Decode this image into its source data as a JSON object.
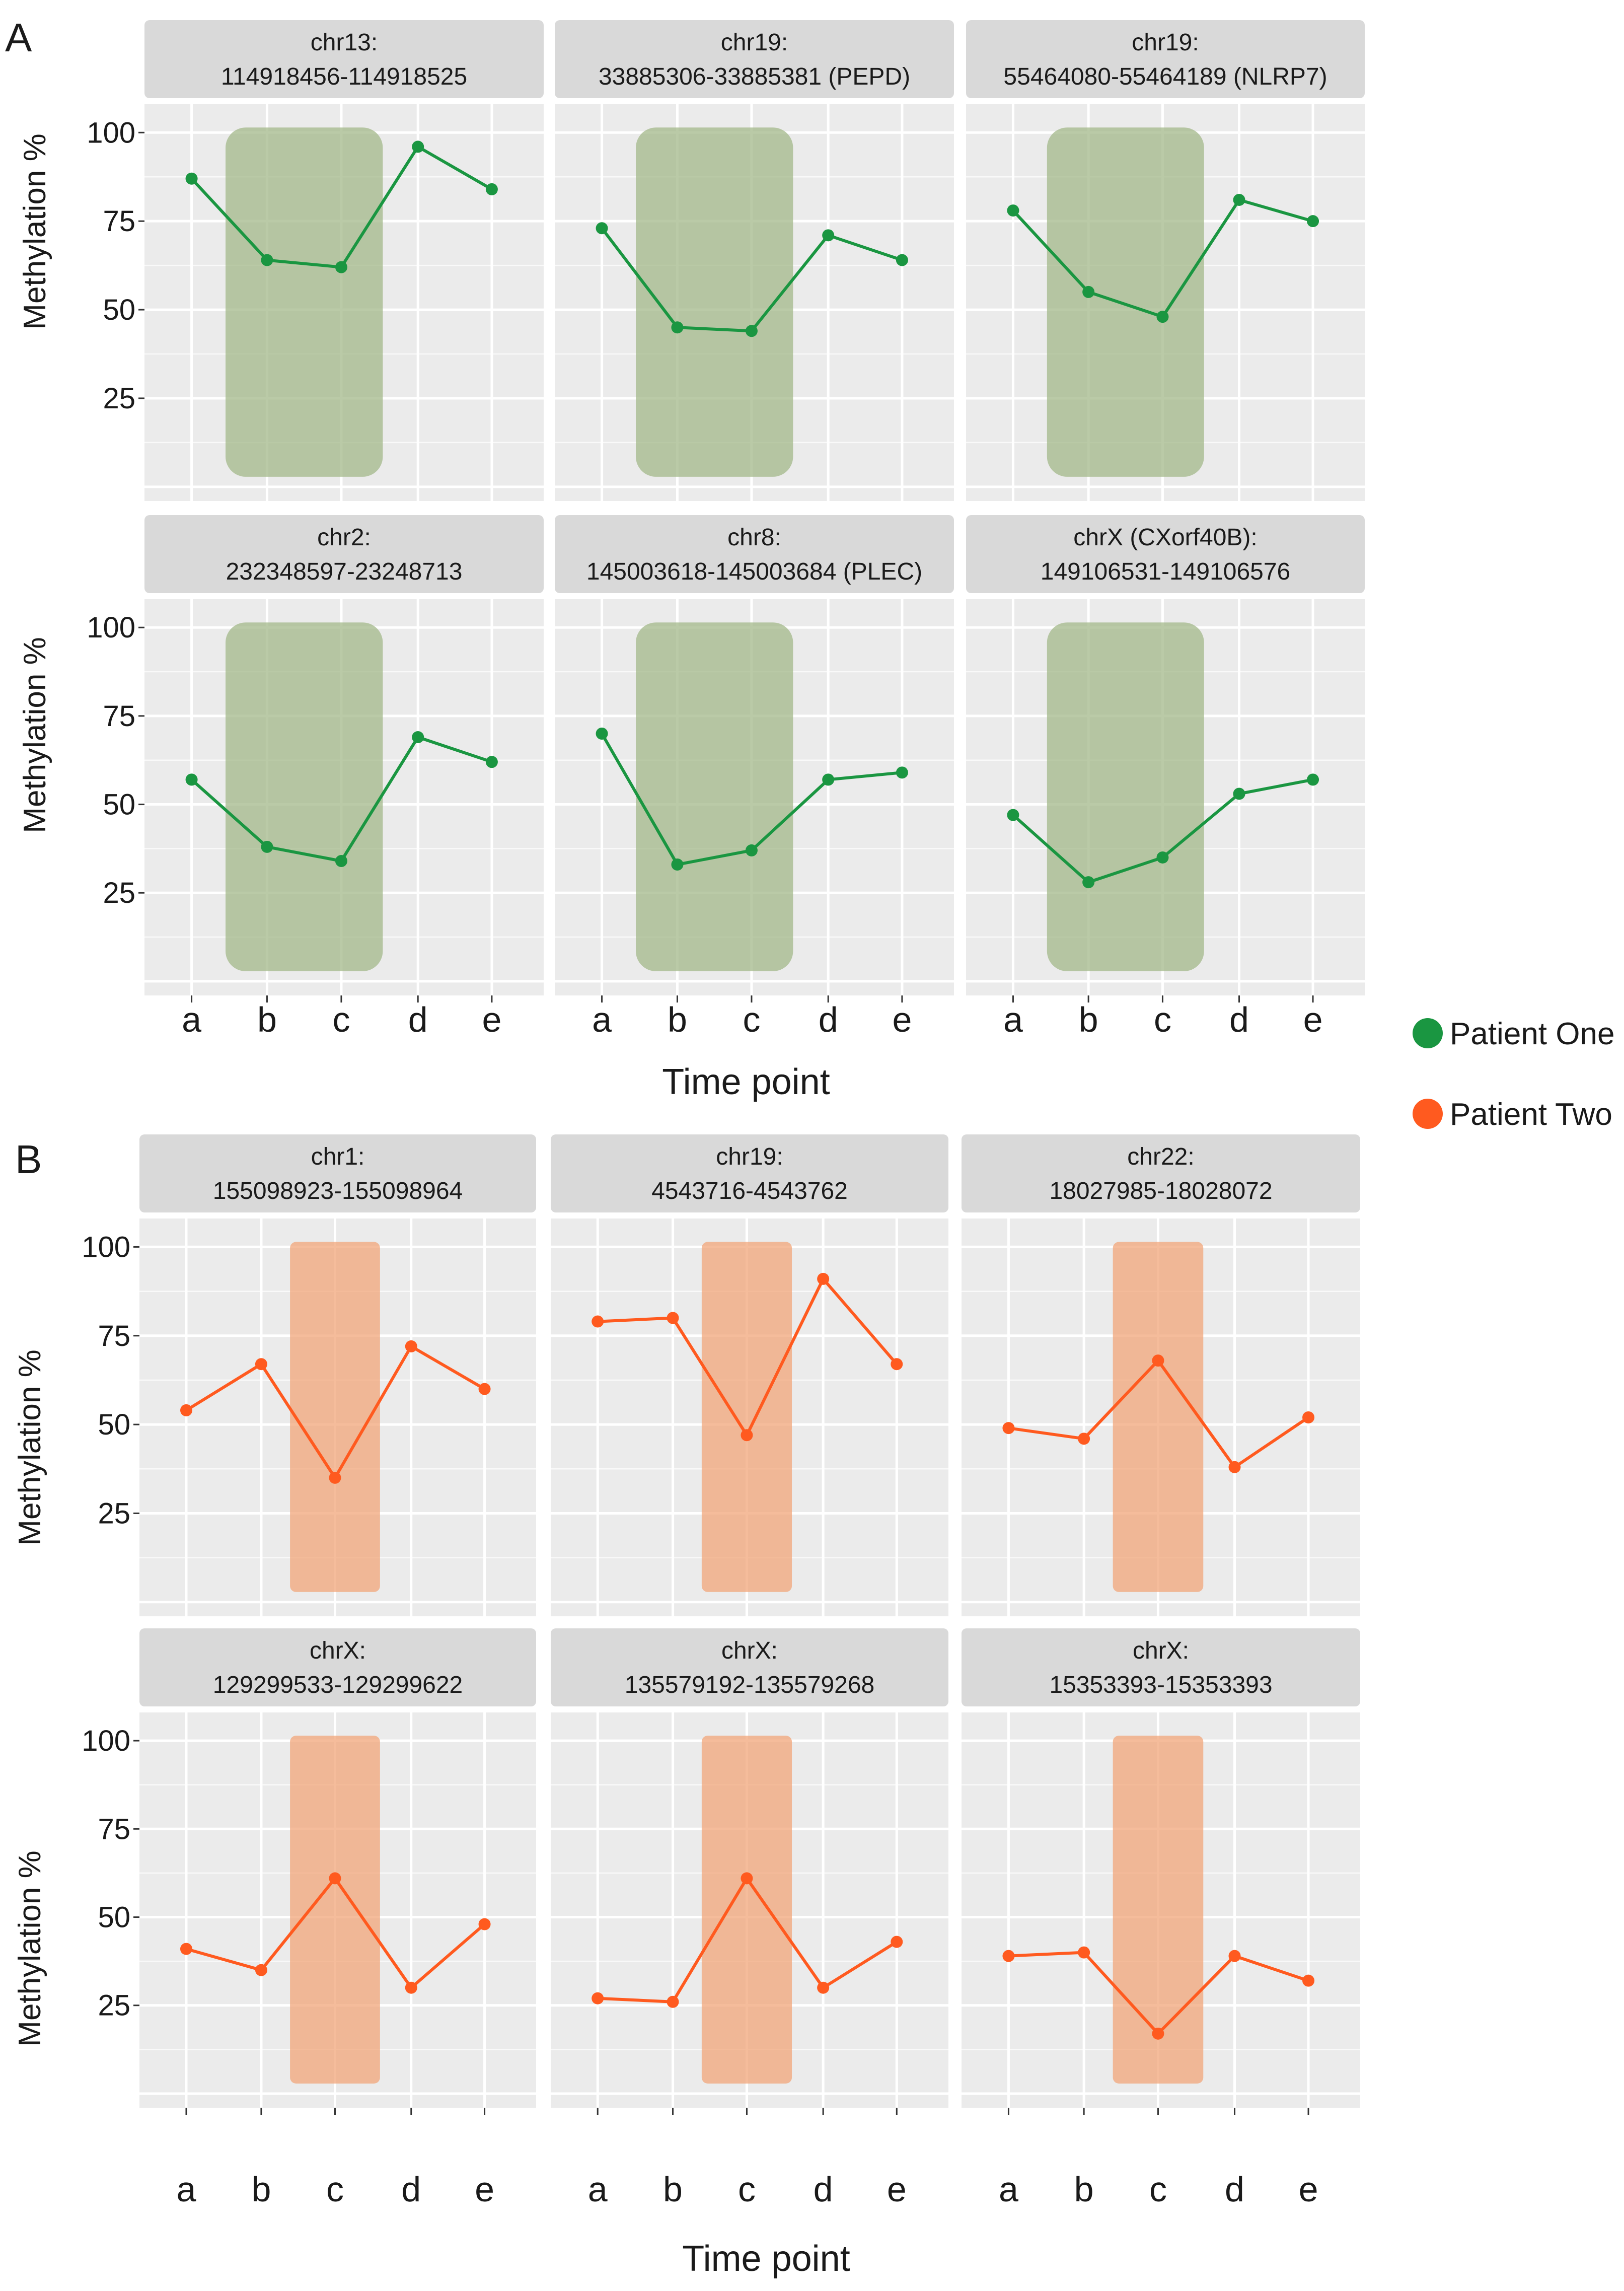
{
  "colors": {
    "patient_one": "#1a9641",
    "patient_two": "#ff5a1f",
    "highlight_one": "#a3b889",
    "highlight_two": "#f2a57a",
    "panel_bg": "#ebebeb",
    "strip_bg": "#d9d9d9",
    "grid": "#ffffff",
    "text": "#1a1a1a"
  },
  "legend": {
    "items": [
      {
        "label": "Patient One",
        "color": "#1a9641"
      },
      {
        "label": "Patient Two",
        "color": "#ff5a1f"
      }
    ]
  },
  "chart_data": [
    {
      "label": "A",
      "type": "line",
      "xlabel": "Time point",
      "ylabel": "Methylation %",
      "categories": [
        "a",
        "b",
        "c",
        "d",
        "e"
      ],
      "yticks": [
        25,
        50,
        75,
        100
      ],
      "ylim": [
        -4,
        108
      ],
      "series_name": "Patient One",
      "highlight": [
        "b",
        "c"
      ],
      "panels": [
        {
          "title": [
            "chr13:",
            "114918456-114918525"
          ],
          "values": [
            87,
            64,
            62,
            96,
            84
          ]
        },
        {
          "title": [
            "chr19:",
            "33885306-33885381 (PEPD)"
          ],
          "values": [
            73,
            45,
            44,
            71,
            64
          ]
        },
        {
          "title": [
            "chr19:",
            "55464080-55464189 (NLRP7)"
          ],
          "values": [
            78,
            55,
            48,
            81,
            75
          ]
        },
        {
          "title": [
            "chr2:",
            "232348597-23248713"
          ],
          "values": [
            57,
            38,
            34,
            69,
            62
          ]
        },
        {
          "title": [
            "chr8:",
            "145003618-145003684 (PLEC)"
          ],
          "values": [
            70,
            33,
            37,
            57,
            59
          ]
        },
        {
          "title": [
            "chrX (CXorf40B):",
            "149106531-149106576"
          ],
          "values": [
            47,
            28,
            35,
            53,
            57
          ]
        }
      ]
    },
    {
      "label": "B",
      "type": "line",
      "xlabel": "Time point",
      "ylabel": "Methylation %",
      "categories": [
        "a",
        "b",
        "c",
        "d",
        "e"
      ],
      "yticks": [
        25,
        50,
        75,
        100
      ],
      "ylim": [
        -4,
        108
      ],
      "series_name": "Patient Two",
      "highlight": [
        "c"
      ],
      "panels": [
        {
          "title": [
            "chr1:",
            "155098923-155098964"
          ],
          "values": [
            54,
            67,
            35,
            72,
            60
          ]
        },
        {
          "title": [
            "chr19:",
            "4543716-4543762"
          ],
          "values": [
            79,
            80,
            47,
            91,
            67
          ]
        },
        {
          "title": [
            "chr22:",
            "18027985-18028072"
          ],
          "values": [
            49,
            46,
            68,
            38,
            52
          ]
        },
        {
          "title": [
            "chrX:",
            "129299533-129299622"
          ],
          "values": [
            41,
            35,
            61,
            30,
            48
          ]
        },
        {
          "title": [
            "chrX:",
            "135579192-135579268"
          ],
          "values": [
            27,
            26,
            61,
            30,
            43
          ]
        },
        {
          "title": [
            "chrX:",
            "15353393-15353393"
          ],
          "values": [
            39,
            40,
            17,
            39,
            32
          ]
        }
      ]
    }
  ]
}
